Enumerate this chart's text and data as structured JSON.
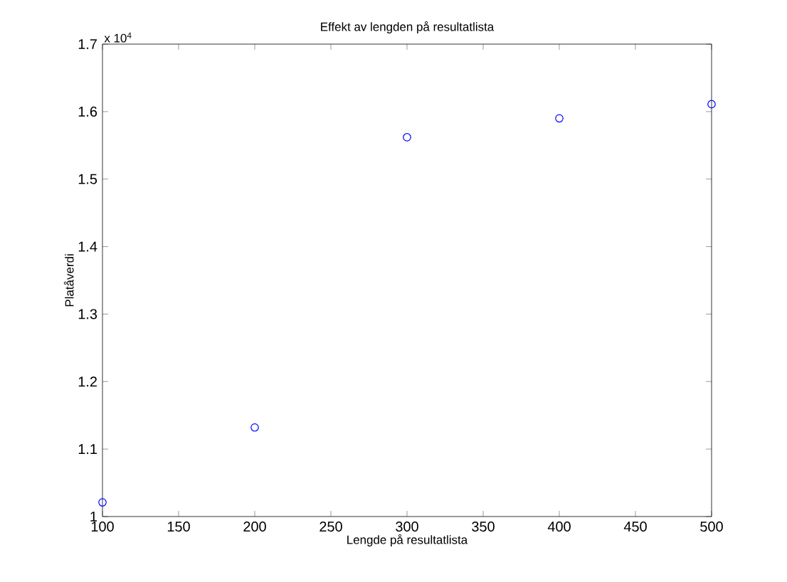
{
  "chart_data": {
    "type": "scatter",
    "title": "Effekt av lengden på resultatlista",
    "xlabel": "Lengde på resultatlista",
    "ylabel": "Platåverdi",
    "annotations": [
      "x 10$^{4}$"
    ],
    "x": [
      100,
      200,
      300,
      400,
      500
    ],
    "series": [
      {
        "color": "#0000ff",
        "values": [
          1.021,
          1.132,
          1.562,
          1.59,
          1.611
        ]
      }
    ],
    "marker": "circle",
    "xlim": [
      100,
      500
    ],
    "xticks": [
      100,
      150,
      200,
      250,
      300,
      350,
      400,
      450,
      500
    ],
    "ylim": [
      1,
      1.7
    ],
    "yticks": [
      1,
      1.1,
      1.2,
      1.3,
      1.4,
      1.5,
      1.6,
      1.7
    ]
  }
}
